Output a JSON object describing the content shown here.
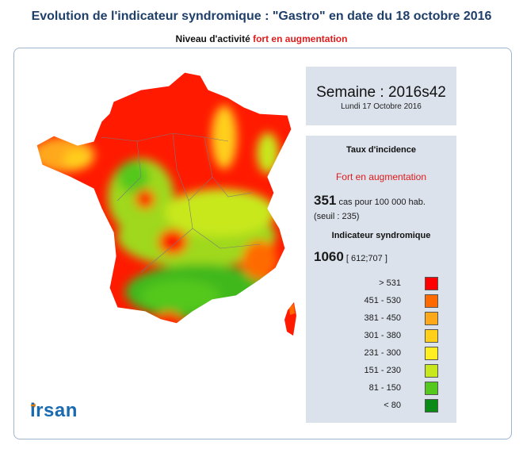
{
  "header": {
    "title": "Evolution de l'indicateur syndromique : \"Gastro\" en date du 18 octobre 2016",
    "subtitle_prefix": "Niveau d'activité",
    "subtitle_level": "fort en augmentation"
  },
  "week": {
    "title": "Semaine : 2016s42",
    "date": "Lundi 17 Octobre 2016"
  },
  "panel": {
    "incidence_heading": "Taux d'incidence",
    "level_text": "Fort en augmentation",
    "rate_value": "351",
    "rate_unit": "cas pour 100 000 hab.",
    "threshold": "(seuil : 235)",
    "indicator_heading": "Indicateur syndromique",
    "indicator_value": "1060",
    "indicator_interval": "[ 612;707 ]"
  },
  "legend": [
    {
      "label": "> 531",
      "color": "#ff0000"
    },
    {
      "label": "451 - 530",
      "color": "#ff6a00"
    },
    {
      "label": "381 - 450",
      "color": "#ffa81a"
    },
    {
      "label": "301 - 380",
      "color": "#ffcf1a"
    },
    {
      "label": "231 - 300",
      "color": "#ffee22"
    },
    {
      "label": "151 - 230",
      "color": "#c8e81e"
    },
    {
      "label": "81 - 150",
      "color": "#55c81e"
    },
    {
      "label": "< 80",
      "color": "#0a8a16"
    }
  ],
  "logo": {
    "text": "irsan"
  },
  "map": {
    "region": "France"
  }
}
